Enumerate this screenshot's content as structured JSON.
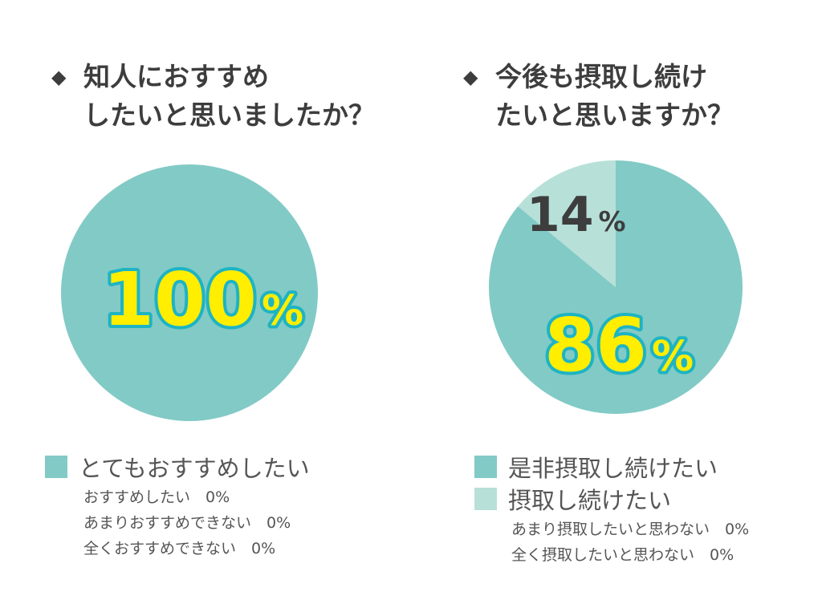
{
  "colors": {
    "primary": "#82cac6",
    "secondary": "#b7e0d8",
    "highlight_text": "#ffee00",
    "highlight_outline": "#1db4c4",
    "dark_text": "#3d3d3d"
  },
  "chart_data": [
    {
      "type": "pie",
      "title_lines": [
        "知人におすすめ",
        "したいと思いましたか？"
      ],
      "bullet": "◆",
      "slices": [
        {
          "label": "とてもおすすめしたい",
          "value": 100,
          "color": "#82cac6",
          "display": "100",
          "unit": "%"
        }
      ],
      "legend": [
        {
          "label": "とてもおすすめしたい",
          "color": "#82cac6"
        }
      ],
      "zero_items": [
        "おすすめしたい　0%",
        "あまりおすすめできない　0%",
        "全くおすすめできない　0%"
      ]
    },
    {
      "type": "pie",
      "title_lines": [
        "今後も摂取し続け",
        "たいと思いますか？"
      ],
      "bullet": "◆",
      "slices": [
        {
          "label": "是非摂取し続けたい",
          "value": 86,
          "color": "#82cac6",
          "display": "86",
          "unit": "%"
        },
        {
          "label": "摂取し続けたい",
          "value": 14,
          "color": "#b7e0d8",
          "display": "14",
          "unit": "%"
        }
      ],
      "legend": [
        {
          "label": "是非摂取し続けたい",
          "color": "#82cac6"
        },
        {
          "label": "摂取し続けたい",
          "color": "#b7e0d8"
        }
      ],
      "zero_items": [
        "あまり摂取したいと思わない　0%",
        "全く摂取したいと思わない　0%"
      ]
    }
  ]
}
